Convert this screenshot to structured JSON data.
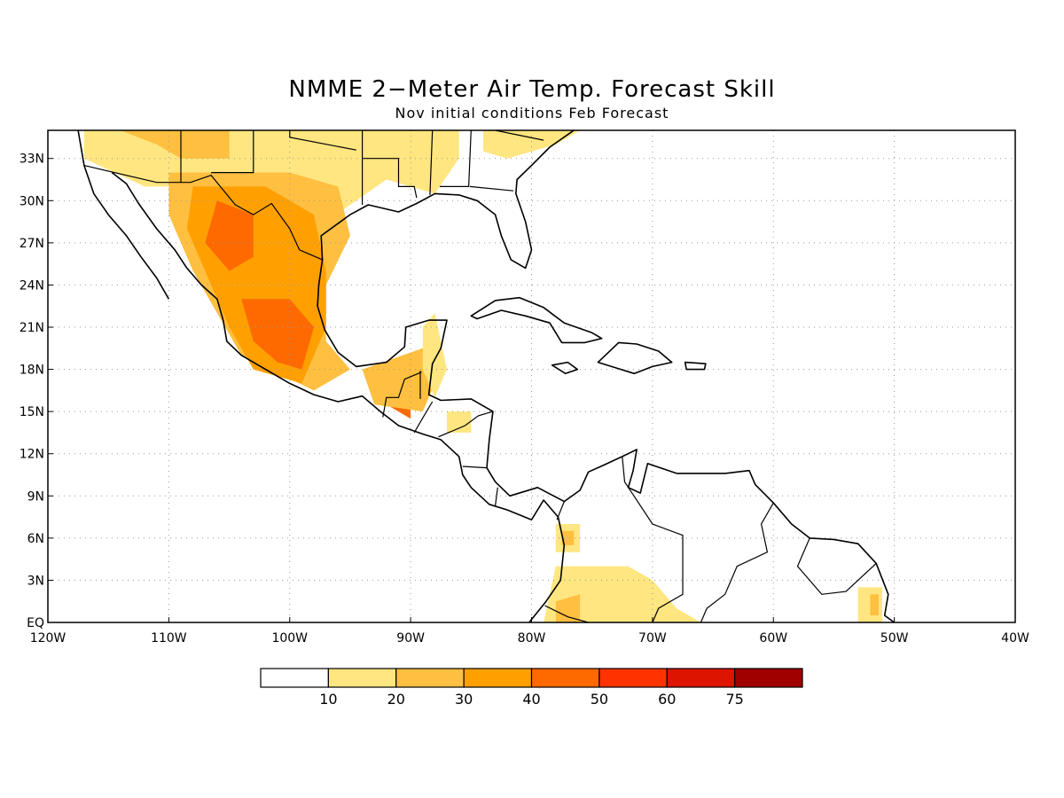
{
  "title": "NMME 2−Meter Air Temp. Forecast Skill",
  "subtitle": "Nov initial conditions  Feb Forecast",
  "map": {
    "lon_range": [
      -120,
      -40
    ],
    "lat_range": [
      0,
      35
    ],
    "lon_ticks": [
      {
        "lon": -120,
        "label": "120W"
      },
      {
        "lon": -110,
        "label": "110W"
      },
      {
        "lon": -100,
        "label": "100W"
      },
      {
        "lon": -90,
        "label": "90W"
      },
      {
        "lon": -80,
        "label": "80W"
      },
      {
        "lon": -70,
        "label": "70W"
      },
      {
        "lon": -60,
        "label": "60W"
      },
      {
        "lon": -50,
        "label": "50W"
      },
      {
        "lon": -40,
        "label": "40W"
      }
    ],
    "lat_ticks": [
      {
        "lat": 0,
        "label": "EQ"
      },
      {
        "lat": 3,
        "label": "3N"
      },
      {
        "lat": 6,
        "label": "6N"
      },
      {
        "lat": 9,
        "label": "9N"
      },
      {
        "lat": 12,
        "label": "12N"
      },
      {
        "lat": 15,
        "label": "15N"
      },
      {
        "lat": 18,
        "label": "18N"
      },
      {
        "lat": 21,
        "label": "21N"
      },
      {
        "lat": 24,
        "label": "24N"
      },
      {
        "lat": 27,
        "label": "27N"
      },
      {
        "lat": 30,
        "label": "30N"
      },
      {
        "lat": 33,
        "label": "33N"
      }
    ],
    "grid": true
  },
  "colorbar": {
    "colors": [
      "#ffffff",
      "#ffe680",
      "#ffbf40",
      "#ffa000",
      "#ff6a00",
      "#ff3200",
      "#dc1400",
      "#a00000"
    ],
    "labels": [
      "10",
      "20",
      "30",
      "40",
      "50",
      "60",
      "75"
    ]
  },
  "skill_regions": [
    {
      "level": 1,
      "coords": [
        [
          -117,
          35
        ],
        [
          -86,
          35
        ],
        [
          -86,
          33
        ],
        [
          -88,
          30.5
        ],
        [
          -92,
          31.5
        ],
        [
          -97,
          28.5
        ],
        [
          -100,
          25
        ],
        [
          -103,
          29
        ],
        [
          -108,
          31
        ],
        [
          -112,
          31
        ],
        [
          -117,
          33
        ]
      ]
    },
    {
      "level": 1,
      "coords": [
        [
          -84,
          35
        ],
        [
          -76,
          35
        ],
        [
          -78,
          34
        ],
        [
          -82,
          33
        ],
        [
          -84,
          33.5
        ]
      ]
    },
    {
      "level": 2,
      "coords": [
        [
          -110,
          32
        ],
        [
          -100,
          32
        ],
        [
          -96,
          31
        ],
        [
          -95,
          27.5
        ],
        [
          -97,
          24
        ],
        [
          -97,
          20
        ],
        [
          -95,
          18
        ],
        [
          -98,
          16.5
        ],
        [
          -104,
          19
        ],
        [
          -106,
          22
        ],
        [
          -108,
          25
        ],
        [
          -110,
          29
        ]
      ]
    },
    {
      "level": 2,
      "coords": [
        [
          -114,
          35
        ],
        [
          -105,
          35
        ],
        [
          -105,
          33
        ],
        [
          -109,
          33
        ],
        [
          -111,
          34
        ]
      ]
    },
    {
      "level": 3,
      "coords": [
        [
          -108,
          31
        ],
        [
          -102,
          31
        ],
        [
          -98,
          29
        ],
        [
          -97,
          25
        ],
        [
          -97,
          21
        ],
        [
          -99,
          17
        ],
        [
          -103,
          18
        ],
        [
          -105,
          21
        ],
        [
          -107,
          25
        ],
        [
          -108.5,
          28
        ]
      ]
    },
    {
      "level": 4,
      "coords": [
        [
          -106,
          30
        ],
        [
          -103,
          29
        ],
        [
          -103,
          26
        ],
        [
          -105,
          25
        ],
        [
          -107,
          27
        ]
      ]
    },
    {
      "level": 4,
      "coords": [
        [
          -104,
          23
        ],
        [
          -100,
          23
        ],
        [
          -98,
          21
        ],
        [
          -99,
          18
        ],
        [
          -101,
          18.5
        ],
        [
          -103,
          20
        ]
      ]
    },
    {
      "level": 4,
      "coords": [
        [
          -93,
          17
        ],
        [
          -90,
          17
        ],
        [
          -90,
          14.5
        ],
        [
          -92,
          15.5
        ]
      ]
    },
    {
      "level": 2,
      "coords": [
        [
          -94,
          18
        ],
        [
          -89,
          19.5
        ],
        [
          -88,
          17
        ],
        [
          -89,
          15
        ],
        [
          -93,
          15.5
        ]
      ]
    },
    {
      "level": 1,
      "coords": [
        [
          -89,
          21
        ],
        [
          -88,
          22
        ],
        [
          -87,
          18
        ],
        [
          -88,
          16
        ],
        [
          -89,
          18
        ]
      ]
    },
    {
      "level": 1,
      "coords": [
        [
          -87,
          15
        ],
        [
          -85,
          15
        ],
        [
          -85,
          13.5
        ],
        [
          -87,
          13.5
        ]
      ]
    },
    {
      "level": 1,
      "coords": [
        [
          -78,
          7
        ],
        [
          -76,
          7
        ],
        [
          -76,
          5
        ],
        [
          -78,
          5
        ]
      ]
    },
    {
      "level": 2,
      "coords": [
        [
          -77.5,
          6.5
        ],
        [
          -76.5,
          6.5
        ],
        [
          -76.5,
          5.5
        ],
        [
          -77.5,
          5.5
        ]
      ]
    },
    {
      "level": 1,
      "coords": [
        [
          -79,
          0
        ],
        [
          -78,
          4
        ],
        [
          -75,
          4
        ],
        [
          -72,
          4
        ],
        [
          -70,
          3
        ],
        [
          -68,
          1
        ],
        [
          -66,
          0
        ]
      ]
    },
    {
      "level": 2,
      "coords": [
        [
          -78,
          1.5
        ],
        [
          -76,
          2
        ],
        [
          -76,
          0
        ],
        [
          -78,
          0
        ]
      ]
    },
    {
      "level": 1,
      "coords": [
        [
          -53,
          2.5
        ],
        [
          -51,
          2.5
        ],
        [
          -51,
          0
        ],
        [
          -53,
          0
        ]
      ]
    },
    {
      "level": 2,
      "coords": [
        [
          -52,
          2
        ],
        [
          -51.3,
          2
        ],
        [
          -51.3,
          0.5
        ],
        [
          -52,
          0.5
        ]
      ]
    }
  ],
  "coastlines": [
    {
      "type": "polyline",
      "coords": [
        [
          -117.5,
          35
        ],
        [
          -117,
          32.5
        ],
        [
          -116.2,
          30.5
        ],
        [
          -115,
          29
        ],
        [
          -113.5,
          27.5
        ],
        [
          -112.3,
          26
        ],
        [
          -111,
          24.5
        ],
        [
          -110,
          23
        ]
      ]
    },
    {
      "type": "polyline",
      "coords": [
        [
          -114.7,
          32
        ],
        [
          -113.5,
          31.2
        ],
        [
          -112.5,
          29.8
        ],
        [
          -111,
          28
        ],
        [
          -109.5,
          26.5
        ],
        [
          -108.5,
          25.2
        ],
        [
          -107.3,
          24
        ],
        [
          -106,
          23
        ],
        [
          -105.5,
          21.5
        ],
        [
          -105.2,
          20
        ],
        [
          -104,
          19
        ],
        [
          -102,
          18
        ],
        [
          -100,
          17
        ],
        [
          -98,
          16.2
        ],
        [
          -96,
          15.7
        ],
        [
          -94,
          16.1
        ],
        [
          -92.5,
          15
        ],
        [
          -91,
          14
        ],
        [
          -89,
          13.4
        ],
        [
          -87.5,
          13
        ],
        [
          -86,
          11.8
        ],
        [
          -85.7,
          10.5
        ],
        [
          -85,
          9.6
        ],
        [
          -83.5,
          8.4
        ],
        [
          -82,
          8
        ],
        [
          -80,
          7.3
        ],
        [
          -79,
          8.7
        ],
        [
          -77.8,
          7.5
        ],
        [
          -77.3,
          5.5
        ],
        [
          -77.6,
          3
        ],
        [
          -78.8,
          1.5
        ],
        [
          -80.2,
          0
        ]
      ]
    },
    {
      "type": "polyline",
      "coords": [
        [
          -97.3,
          25.8
        ],
        [
          -97.6,
          24
        ],
        [
          -97.7,
          22.5
        ],
        [
          -97.1,
          20.8
        ],
        [
          -96,
          19.2
        ],
        [
          -94.5,
          18.2
        ],
        [
          -92,
          18.5
        ],
        [
          -90.5,
          19.6
        ],
        [
          -90.4,
          21
        ],
        [
          -88.5,
          21.5
        ],
        [
          -87,
          21.5
        ],
        [
          -87.5,
          19.5
        ],
        [
          -88.2,
          18.4
        ],
        [
          -88.5,
          16.2
        ],
        [
          -87.5,
          15.8
        ],
        [
          -85,
          15.9
        ],
        [
          -83.2,
          15
        ],
        [
          -83.5,
          13
        ],
        [
          -83.7,
          11
        ],
        [
          -83,
          10
        ],
        [
          -81.8,
          9
        ],
        [
          -79.5,
          9.6
        ],
        [
          -77.3,
          8.6
        ],
        [
          -76,
          9.4
        ],
        [
          -75.3,
          10.7
        ],
        [
          -74,
          11.2
        ],
        [
          -72.5,
          11.8
        ],
        [
          -71.3,
          12.3
        ],
        [
          -71.6,
          10.8
        ],
        [
          -72,
          9.6
        ],
        [
          -71,
          9.2
        ],
        [
          -70.4,
          11.3
        ],
        [
          -68,
          10.6
        ],
        [
          -66,
          10.6
        ],
        [
          -64,
          10.6
        ],
        [
          -62,
          10.8
        ],
        [
          -61.5,
          9.8
        ],
        [
          -60,
          8.5
        ],
        [
          -58.5,
          7
        ],
        [
          -57,
          6
        ],
        [
          -55,
          5.9
        ],
        [
          -53,
          5.6
        ],
        [
          -51.5,
          4.2
        ],
        [
          -50.5,
          2
        ],
        [
          -50.8,
          0.5
        ],
        [
          -50,
          0
        ]
      ]
    },
    {
      "type": "polyline",
      "coords": [
        [
          -97.3,
          25.8
        ],
        [
          -97.4,
          27.5
        ],
        [
          -95,
          29
        ],
        [
          -93.5,
          29.7
        ],
        [
          -91,
          29.2
        ],
        [
          -89.5,
          29.8
        ],
        [
          -88,
          30.5
        ],
        [
          -86,
          30.4
        ],
        [
          -84.5,
          30
        ],
        [
          -83,
          29
        ],
        [
          -82.5,
          27.5
        ],
        [
          -81.7,
          25.8
        ],
        [
          -80.5,
          25.2
        ],
        [
          -80,
          26.5
        ],
        [
          -80.5,
          28.5
        ],
        [
          -81.3,
          30.5
        ],
        [
          -81.2,
          31.5
        ],
        [
          -80,
          32.5
        ],
        [
          -78.5,
          33.8
        ],
        [
          -76.5,
          35
        ]
      ]
    },
    {
      "type": "polygon",
      "coords": [
        [
          -85,
          21.8
        ],
        [
          -83,
          22.9
        ],
        [
          -81,
          23.1
        ],
        [
          -79,
          22.4
        ],
        [
          -77.3,
          21.3
        ],
        [
          -75,
          20.6
        ],
        [
          -74.2,
          20.2
        ],
        [
          -75.6,
          19.9
        ],
        [
          -77.5,
          19.9
        ],
        [
          -78.5,
          21.3
        ],
        [
          -80.5,
          21.8
        ],
        [
          -82.5,
          22.2
        ],
        [
          -84.5,
          21.6
        ]
      ]
    },
    {
      "type": "polygon",
      "coords": [
        [
          -74.5,
          18.5
        ],
        [
          -72.8,
          19.9
        ],
        [
          -71.3,
          19.8
        ],
        [
          -69.5,
          19.3
        ],
        [
          -68.4,
          18.5
        ],
        [
          -70,
          18.2
        ],
        [
          -71.5,
          17.7
        ],
        [
          -73,
          18.1
        ]
      ]
    },
    {
      "type": "polygon",
      "coords": [
        [
          -78.3,
          18.3
        ],
        [
          -77,
          18.5
        ],
        [
          -76.2,
          18
        ],
        [
          -77.2,
          17.7
        ]
      ]
    },
    {
      "type": "polygon",
      "coords": [
        [
          -67.3,
          18.5
        ],
        [
          -65.6,
          18.4
        ],
        [
          -65.7,
          18
        ],
        [
          -67.2,
          18
        ]
      ]
    }
  ],
  "borders": [
    {
      "coords": [
        [
          -117,
          32.5
        ],
        [
          -111,
          31.3
        ],
        [
          -108.2,
          31.3
        ],
        [
          -106.5,
          31.8
        ],
        [
          -104.5,
          29.7
        ],
        [
          -103,
          29
        ],
        [
          -101.5,
          29.8
        ],
        [
          -100,
          28
        ],
        [
          -99.2,
          26.5
        ],
        [
          -97.3,
          25.8
        ]
      ]
    },
    {
      "coords": [
        [
          -92.3,
          14.6
        ],
        [
          -92,
          16
        ],
        [
          -91,
          16
        ],
        [
          -90.5,
          17.3
        ],
        [
          -89.1,
          17.8
        ]
      ]
    },
    {
      "coords": [
        [
          -89.2,
          17.9
        ],
        [
          -89.2,
          15.9
        ]
      ]
    },
    {
      "coords": [
        [
          -88.2,
          15.7
        ],
        [
          -89.1,
          14.4
        ],
        [
          -89.7,
          13.5
        ]
      ]
    },
    {
      "coords": [
        [
          -87.7,
          13.2
        ],
        [
          -85.5,
          14
        ],
        [
          -84.4,
          14.7
        ],
        [
          -83.2,
          15
        ]
      ]
    },
    {
      "coords": [
        [
          -85.7,
          11.1
        ],
        [
          -83.7,
          11
        ]
      ]
    },
    {
      "coords": [
        [
          -83,
          8.3
        ],
        [
          -82.8,
          9.6
        ]
      ]
    },
    {
      "coords": [
        [
          -77.9,
          7.3
        ],
        [
          -77.3,
          8.6
        ]
      ]
    },
    {
      "coords": [
        [
          -72.5,
          11.8
        ],
        [
          -72.3,
          10
        ],
        [
          -70,
          7
        ],
        [
          -67.5,
          6.2
        ],
        [
          -67.5,
          2
        ],
        [
          -69.5,
          1
        ],
        [
          -70,
          0
        ]
      ]
    },
    {
      "coords": [
        [
          -78.9,
          1.2
        ],
        [
          -77,
          0.4
        ],
        [
          -75.3,
          0
        ]
      ]
    },
    {
      "coords": [
        [
          -60,
          8.5
        ],
        [
          -61,
          7
        ],
        [
          -60.5,
          5
        ],
        [
          -63,
          4
        ],
        [
          -64,
          2
        ],
        [
          -65.5,
          1
        ],
        [
          -66,
          0
        ]
      ]
    },
    {
      "coords": [
        [
          -57,
          6
        ],
        [
          -58,
          4
        ],
        [
          -56,
          2
        ],
        [
          -54,
          2.2
        ],
        [
          -51.5,
          4.2
        ]
      ]
    },
    {
      "coords": [
        [
          -109,
          35
        ],
        [
          -109,
          31.3
        ]
      ]
    },
    {
      "coords": [
        [
          -103,
          35
        ],
        [
          -103,
          32
        ],
        [
          -106.5,
          32
        ]
      ]
    },
    {
      "coords": [
        [
          -100,
          35
        ],
        [
          -100,
          34.5
        ],
        [
          -94.5,
          33.6
        ]
      ]
    },
    {
      "coords": [
        [
          -94,
          35
        ],
        [
          -94,
          29.7
        ]
      ]
    },
    {
      "coords": [
        [
          -94,
          33
        ],
        [
          -91,
          33
        ],
        [
          -91,
          31
        ],
        [
          -89.7,
          31
        ],
        [
          -89.5,
          30.2
        ]
      ]
    },
    {
      "coords": [
        [
          -88.2,
          35
        ],
        [
          -88.4,
          30.4
        ]
      ]
    },
    {
      "coords": [
        [
          -85,
          35
        ],
        [
          -85.2,
          31
        ],
        [
          -87.6,
          31
        ]
      ]
    },
    {
      "coords": [
        [
          -85.1,
          31
        ],
        [
          -81.5,
          30.7
        ]
      ]
    },
    {
      "coords": [
        [
          -83,
          35
        ],
        [
          -79,
          34.3
        ]
      ]
    }
  ]
}
